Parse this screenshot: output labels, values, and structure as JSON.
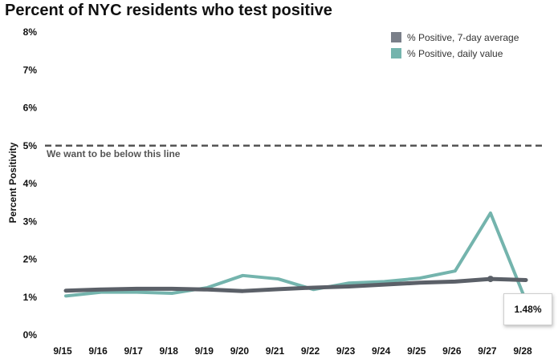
{
  "chart_data": {
    "type": "line",
    "title": "Percent of NYC residents who test positive",
    "xlabel": "",
    "ylabel": "Percent Positivity",
    "categories": [
      "9/15",
      "9/16",
      "9/17",
      "9/18",
      "9/19",
      "9/20",
      "9/21",
      "9/22",
      "9/23",
      "9/24",
      "9/25",
      "9/26",
      "9/27",
      "9/28"
    ],
    "ylim": [
      0,
      8
    ],
    "yticks": [
      "0%",
      "1%",
      "2%",
      "3%",
      "4%",
      "5%",
      "6%",
      "7%",
      "8%"
    ],
    "series": [
      {
        "name": "% Positive, daily value",
        "color": "#74b4ad",
        "values": [
          1.03,
          1.13,
          1.13,
          1.1,
          1.25,
          1.57,
          1.48,
          1.2,
          1.37,
          1.41,
          1.5,
          1.69,
          3.22,
          0.9
        ]
      },
      {
        "name": "% Positive, 7-day average",
        "color": "#5b6068",
        "values": [
          1.17,
          1.2,
          1.22,
          1.22,
          1.2,
          1.16,
          1.21,
          1.25,
          1.28,
          1.33,
          1.38,
          1.41,
          1.48,
          1.45
        ]
      }
    ],
    "threshold": {
      "value": 5,
      "label": "We want to be below this line",
      "color": "#555555"
    },
    "legend": {
      "position": "top-right",
      "items": [
        {
          "label": "% Positive, 7-day average",
          "color": "#7a7f89"
        },
        {
          "label": "% Positive, daily value",
          "color": "#74b4ad"
        }
      ]
    },
    "tooltip": {
      "category": "9/27",
      "value_label": "1.48%"
    },
    "grid": false
  }
}
